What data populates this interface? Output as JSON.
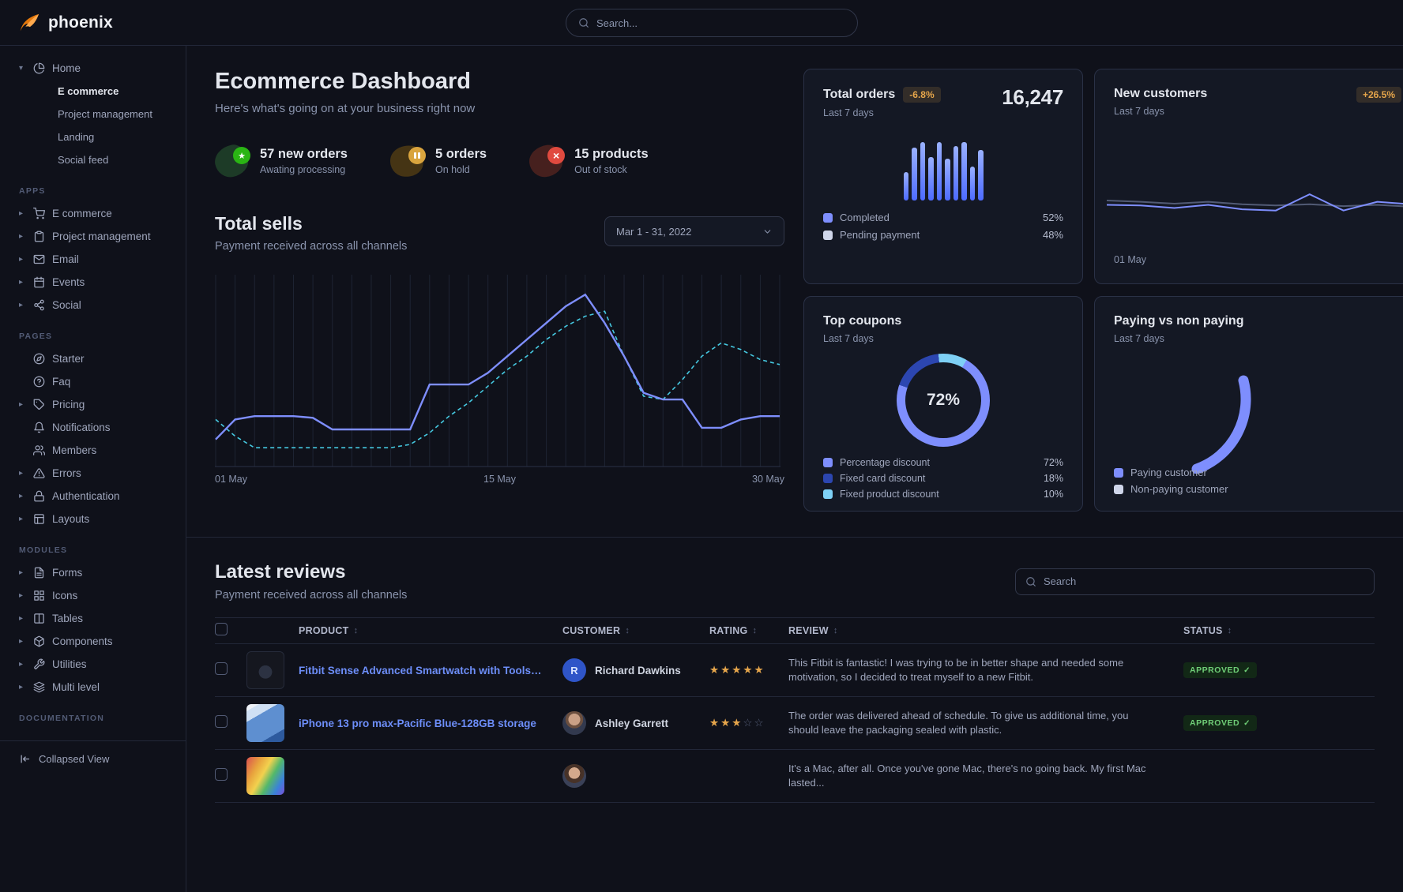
{
  "brand": {
    "name": "phoenix"
  },
  "navbar": {
    "search_placeholder": "Search..."
  },
  "colors": {
    "accent": "#7e8efd",
    "accent_strong": "#4d6bff",
    "dashed_line": "#45c8e0",
    "warning": "#e5a54b",
    "success": "#6fce77",
    "danger": "#e04a3f",
    "link": "#6d8ef9",
    "donut_segments": [
      "#7e8efd",
      "#2c46b0",
      "#7ed0f5"
    ]
  },
  "sidebar": {
    "home": {
      "label": "Home"
    },
    "home_children": [
      {
        "label": "E commerce",
        "active": true
      },
      {
        "label": "Project management",
        "active": false
      },
      {
        "label": "Landing",
        "active": false
      },
      {
        "label": "Social feed",
        "active": false
      }
    ],
    "apps_title": "APPS",
    "apps": [
      {
        "label": "E commerce",
        "icon": "shopping-cart-icon"
      },
      {
        "label": "Project management",
        "icon": "clipboard-icon"
      },
      {
        "label": "Email",
        "icon": "mail-icon"
      },
      {
        "label": "Events",
        "icon": "calendar-icon"
      },
      {
        "label": "Social",
        "icon": "share-icon"
      }
    ],
    "pages_title": "PAGES",
    "pages": [
      {
        "label": "Starter",
        "icon": "compass-icon",
        "caret": false
      },
      {
        "label": "Faq",
        "icon": "help-circle-icon",
        "caret": false
      },
      {
        "label": "Pricing",
        "icon": "tag-icon",
        "caret": true
      },
      {
        "label": "Notifications",
        "icon": "bell-icon",
        "caret": false
      },
      {
        "label": "Members",
        "icon": "users-icon",
        "caret": false
      },
      {
        "label": "Errors",
        "icon": "alert-triangle-icon",
        "caret": true
      },
      {
        "label": "Authentication",
        "icon": "lock-icon",
        "caret": true
      },
      {
        "label": "Layouts",
        "icon": "layout-icon",
        "caret": true
      }
    ],
    "modules_title": "MODULES",
    "modules": [
      {
        "label": "Forms",
        "icon": "file-text-icon"
      },
      {
        "label": "Icons",
        "icon": "grid-icon"
      },
      {
        "label": "Tables",
        "icon": "table-icon"
      },
      {
        "label": "Components",
        "icon": "package-icon"
      },
      {
        "label": "Utilities",
        "icon": "tool-icon"
      },
      {
        "label": "Multi level",
        "icon": "layers-icon"
      }
    ],
    "documentation_title": "DOCUMENTATION",
    "collapsed_view": "Collapsed View"
  },
  "header": {
    "title": "Ecommerce Dashboard",
    "subtitle": "Here's what's going on at your business right now"
  },
  "stats": [
    {
      "value": "57 new orders",
      "caption": "Awating processing",
      "icon": "star-icon",
      "color": "green"
    },
    {
      "value": "5 orders",
      "caption": "On hold",
      "icon": "pause-icon",
      "color": "yellow"
    },
    {
      "value": "15 products",
      "caption": "Out of stock",
      "icon": "x-icon",
      "color": "red"
    }
  ],
  "total_sells": {
    "title": "Total sells",
    "subtitle": "Payment received across all channels",
    "date_range": "Mar 1 - 31, 2022"
  },
  "cards": {
    "total_orders": {
      "title": "Total orders",
      "badge": "-6.8%",
      "period": "Last 7 days",
      "value": "16,247",
      "legend": [
        {
          "label": "Completed",
          "value": "52%"
        },
        {
          "label": "Pending payment",
          "value": "48%"
        }
      ]
    },
    "new_customers": {
      "title": "New customers",
      "badge": "+26.5%",
      "period": "Last 7 days",
      "x_label": "01 May"
    },
    "top_coupons": {
      "title": "Top coupons",
      "period": "Last 7 days",
      "center_value": "72%",
      "legend": [
        {
          "label": "Percentage discount",
          "value": "72%"
        },
        {
          "label": "Fixed card discount",
          "value": "18%"
        },
        {
          "label": "Fixed product discount",
          "value": "10%"
        }
      ]
    },
    "paying": {
      "title": "Paying vs non paying",
      "period": "Last 7 days",
      "legend": [
        {
          "label": "Paying customer"
        },
        {
          "label": "Non-paying customer"
        }
      ]
    }
  },
  "reviews": {
    "title": "Latest reviews",
    "subtitle": "Payment received across all channels",
    "search_placeholder": "Search",
    "columns": [
      "PRODUCT",
      "CUSTOMER",
      "RATING",
      "REVIEW",
      "STATUS"
    ],
    "rows": [
      {
        "product": "Fitbit Sense Advanced Smartwatch with Tools fo...",
        "customer": "Richard Dawkins",
        "avatar_type": "initial",
        "avatar_initial": "R",
        "rating": 5,
        "review": "This Fitbit is fantastic! I was trying to be in better shape and needed some motivation, so I decided to treat myself to a new Fitbit.",
        "status": "APPROVED"
      },
      {
        "product": "iPhone 13 pro max-Pacific Blue-128GB storage",
        "customer": "Ashley Garrett",
        "avatar_type": "photo",
        "avatar_initial": "",
        "rating": 3,
        "review": "The order was delivered ahead of schedule. To give us additional time, you should leave the packaging sealed with plastic.",
        "status": "APPROVED"
      },
      {
        "product": "",
        "customer": "",
        "avatar_type": "photo",
        "avatar_initial": "",
        "rating": null,
        "review": "It's a Mac, after all. Once you've gone Mac, there's no going back. My first Mac lasted...",
        "status": ""
      }
    ]
  },
  "chart_data": [
    {
      "id": "total-sells",
      "type": "line",
      "title": "Total sells",
      "x_labels": [
        "01 May",
        "15 May",
        "30 May"
      ],
      "x_range_days": 30,
      "ylim": [
        0,
        110
      ],
      "grid": "vertical",
      "legend_position": "none",
      "series": [
        {
          "name": "sales-current",
          "style": "solid",
          "color": "#7e8efd",
          "values": [
            12,
            24,
            26,
            26,
            26,
            25,
            18,
            18,
            18,
            18,
            18,
            45,
            45,
            45,
            52,
            62,
            72,
            82,
            92,
            99,
            82,
            62,
            40,
            36,
            36,
            19,
            19,
            24,
            26,
            26
          ]
        },
        {
          "name": "sales-previous",
          "style": "dashed",
          "color": "#45c8e0",
          "values": [
            24,
            14,
            7,
            7,
            7,
            7,
            7,
            7,
            7,
            7,
            9,
            16,
            26,
            34,
            44,
            54,
            62,
            72,
            80,
            86,
            89,
            62,
            38,
            36,
            48,
            62,
            70,
            66,
            60,
            57
          ]
        }
      ]
    },
    {
      "id": "total-orders",
      "type": "bar",
      "ylim": [
        0,
        100
      ],
      "values": [
        42,
        78,
        86,
        64,
        86,
        62,
        80,
        86,
        50,
        74
      ],
      "bar_color_top": "#9ab1ff",
      "bar_color_bottom": "#4d6bff"
    },
    {
      "id": "new-customers",
      "type": "line",
      "x_label": "01 May",
      "ylim": [
        0,
        100
      ],
      "series": [
        {
          "name": "customers-previous",
          "style": "solid",
          "color": "#525b75",
          "values": [
            62,
            60,
            57,
            60,
            56,
            54,
            56,
            53,
            55,
            52,
            50
          ]
        },
        {
          "name": "customers-current",
          "style": "solid",
          "color": "#7e8efd",
          "values": [
            55,
            54,
            50,
            55,
            48,
            46,
            72,
            46,
            60,
            56,
            53
          ]
        }
      ]
    },
    {
      "id": "top-coupons",
      "type": "pie",
      "labels": [
        "Percentage discount",
        "Fixed card discount",
        "Fixed product discount"
      ],
      "values": [
        72,
        18,
        10
      ],
      "colors": [
        "#7e8efd",
        "#2c46b0",
        "#7ed0f5"
      ],
      "center_label": "72%"
    },
    {
      "id": "paying-vs-non-paying",
      "type": "pie",
      "labels": [
        "Paying customer",
        "Non-paying customer"
      ],
      "colors": [
        "#7e8efd",
        "#e3e6ed"
      ]
    }
  ]
}
